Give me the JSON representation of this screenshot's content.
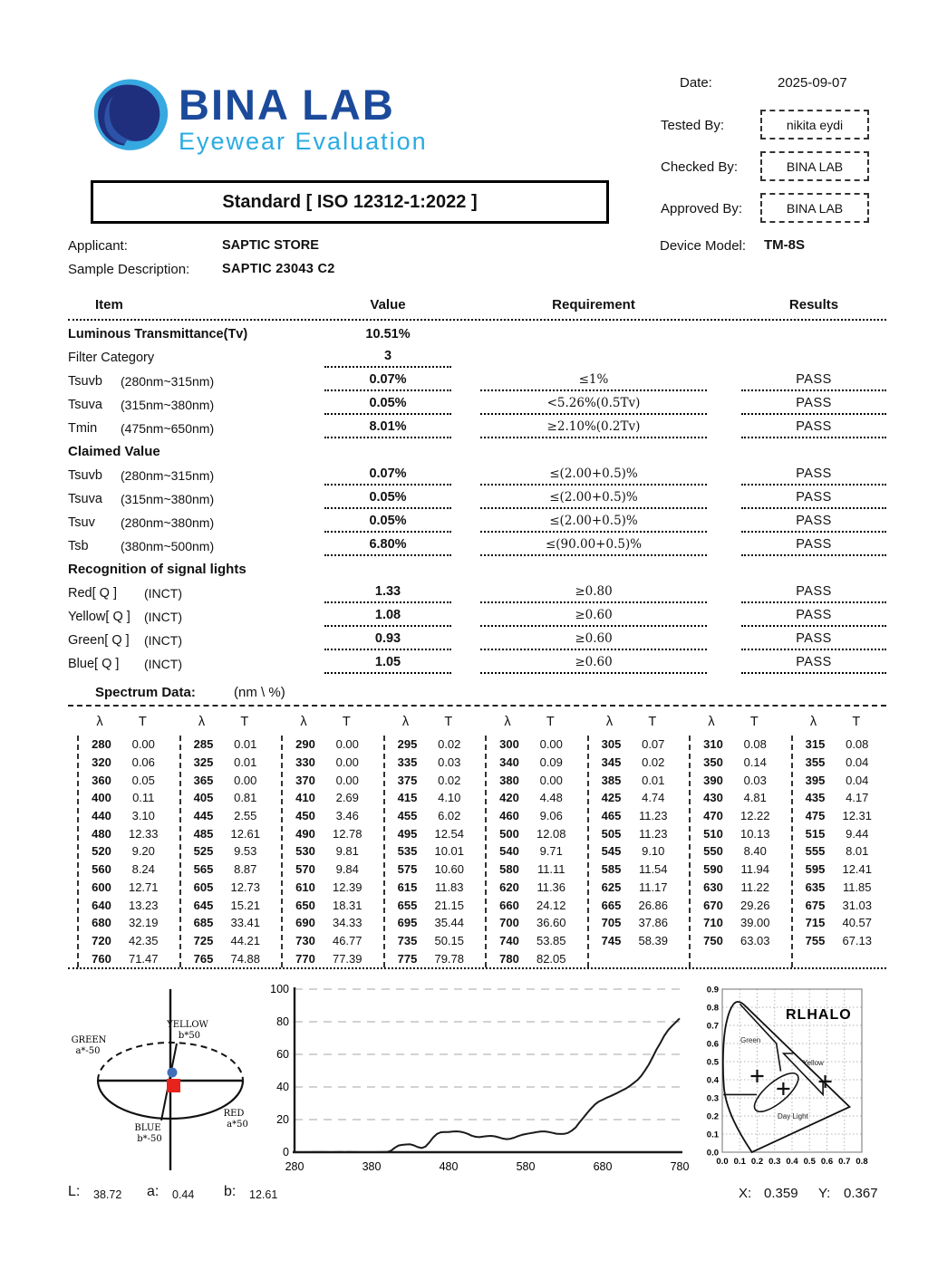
{
  "header": {
    "logo": {
      "title": "BINA LAB",
      "subtitle": "Eyewear Evaluation",
      "brand_blue": "#1b4a9b",
      "accent_cyan": "#29abe2"
    },
    "standard": "Standard [ ISO 12312-1:2022 ]",
    "meta": {
      "date_label": "Date:",
      "date": "2025-09-07",
      "tested_label": "Tested By:",
      "tested": "nikita eydi",
      "checked_label": "Checked By:",
      "checked": "BINA LAB",
      "approved_label": "Approved By:",
      "approved": "BINA LAB",
      "device_label": "Device Model:",
      "device": "TM-8S"
    },
    "applicant_label": "Applicant:",
    "applicant": "SAPTIC STORE",
    "sample_label": "Sample Description:",
    "sample": "SAPTIC 23043 C2"
  },
  "results_table": {
    "columns": [
      "Item",
      "Value",
      "Requirement",
      "Results"
    ],
    "rows": [
      {
        "t": "d",
        "item": "Luminous Transmittance(Tv)",
        "range": "",
        "value": "10.51%",
        "req": "",
        "res": "",
        "bold": true,
        "lines": []
      },
      {
        "t": "d",
        "item": "Filter Category",
        "range": "",
        "value": "3",
        "req": "",
        "res": "",
        "lines": [
          "v"
        ]
      },
      {
        "t": "d",
        "item": "Tsuvb",
        "range": "(280nm~315nm)",
        "value": "0.07%",
        "req": "≤1%",
        "res": "PASS",
        "lines": [
          "v",
          "q",
          "r"
        ]
      },
      {
        "t": "d",
        "item": "Tsuva",
        "range": "(315nm~380nm)",
        "value": "0.05%",
        "req": "<5.26%(0.5Tv)",
        "res": "PASS",
        "lines": [
          "v",
          "q",
          "r"
        ]
      },
      {
        "t": "d",
        "item": "Tmin",
        "range": "(475nm~650nm)",
        "value": "8.01%",
        "req": "≥2.10%(0.2Tv)",
        "res": "PASS",
        "lines": [
          "v",
          "q",
          "r"
        ]
      },
      {
        "t": "s",
        "item": "Claimed Value"
      },
      {
        "t": "d",
        "item": "Tsuvb",
        "range": "(280nm~315nm)",
        "value": "0.07%",
        "req": "≤(2.00+0.5)%",
        "res": "PASS",
        "lines": [
          "v",
          "q",
          "r"
        ]
      },
      {
        "t": "d",
        "item": "Tsuva",
        "range": "(315nm~380nm)",
        "value": "0.05%",
        "req": "≤(2.00+0.5)%",
        "res": "PASS",
        "lines": [
          "v",
          "q",
          "r"
        ]
      },
      {
        "t": "d",
        "item": "Tsuv",
        "range": "(280nm~380nm)",
        "value": "0.05%",
        "req": "≤(2.00+0.5)%",
        "res": "PASS",
        "lines": [
          "v",
          "q",
          "r"
        ]
      },
      {
        "t": "d",
        "item": "Tsb",
        "range": "(380nm~500nm)",
        "value": "6.80%",
        "req": "≤(90.00+0.5)%",
        "res": "PASS",
        "lines": [
          "v",
          "q",
          "r"
        ]
      },
      {
        "t": "s",
        "item": "Recognition of signal lights"
      },
      {
        "t": "d",
        "item": "Red[ Q ]",
        "range": "(INCT)",
        "value": "1.33",
        "req": "≥0.80",
        "res": "PASS",
        "lines": [
          "v",
          "q",
          "r"
        ]
      },
      {
        "t": "d",
        "item": "Yellow[ Q ]",
        "range": "(INCT)",
        "value": "1.08",
        "req": "≥0.60",
        "res": "PASS",
        "lines": [
          "v",
          "q",
          "r"
        ]
      },
      {
        "t": "d",
        "item": "Green[ Q ]",
        "range": "(INCT)",
        "value": "0.93",
        "req": "≥0.60",
        "res": "PASS",
        "lines": [
          "v",
          "q",
          "r"
        ]
      },
      {
        "t": "d",
        "item": "Blue[ Q ]",
        "range": "(INCT)",
        "value": "1.05",
        "req": "≥0.60",
        "res": "PASS",
        "lines": [
          "v",
          "q",
          "r"
        ]
      }
    ]
  },
  "spectrum_table": {
    "label": "Spectrum Data:",
    "unit": "(nm \\ %)",
    "col_headers": [
      "λ",
      "T"
    ]
  },
  "chart_data": [
    {
      "type": "scatter",
      "name": "lab-hue-diagram",
      "axis_labels": {
        "top": "YELLOW",
        "top_sub": "b*50",
        "left": "GREEN",
        "left_sub": "a*-50",
        "right": "RED",
        "right_sub": "a*50",
        "bottom": "BLUE",
        "bottom_sub": "b*-50"
      },
      "sample_point": {
        "L": 38.72,
        "a": 0.44,
        "b": 12.61
      },
      "marker_colors": {
        "dot": "#3f6fba",
        "square": "#e8231c"
      }
    },
    {
      "type": "line",
      "name": "transmittance-spectrum",
      "x_start": 280,
      "x_step": 5,
      "x_end": 780,
      "xlabel": "",
      "ylabel": "",
      "title": "",
      "xlim": [
        280,
        780
      ],
      "ylim": [
        0,
        100
      ],
      "xticks": [
        280,
        380,
        480,
        580,
        680,
        780
      ],
      "yticks": [
        0,
        20,
        40,
        60,
        80,
        100
      ],
      "grid": "dashed-horizontal",
      "values": [
        "0.00",
        "0.01",
        "0.00",
        "0.02",
        "0.00",
        "0.07",
        "0.08",
        "0.08",
        "0.06",
        "0.01",
        "0.00",
        "0.03",
        "0.09",
        "0.02",
        "0.14",
        "0.04",
        "0.05",
        "0.00",
        "0.00",
        "0.02",
        "0.00",
        "0.01",
        "0.03",
        "0.04",
        "0.11",
        "0.81",
        "2.69",
        "4.10",
        "4.48",
        "4.74",
        "4.81",
        "4.17",
        "3.10",
        "2.55",
        "3.46",
        "6.02",
        "9.06",
        "11.23",
        "12.22",
        "12.31",
        "12.33",
        "12.61",
        "12.78",
        "12.54",
        "12.08",
        "11.23",
        "10.13",
        "9.44",
        "9.20",
        "9.53",
        "9.81",
        "10.01",
        "9.71",
        "9.10",
        "8.40",
        "8.01",
        "8.24",
        "8.87",
        "9.84",
        "10.60",
        "11.11",
        "11.54",
        "11.94",
        "12.41",
        "12.71",
        "12.73",
        "12.39",
        "11.83",
        "11.36",
        "11.17",
        "11.22",
        "11.85",
        "13.23",
        "15.21",
        "18.31",
        "21.15",
        "24.12",
        "26.86",
        "29.26",
        "31.03",
        "32.19",
        "33.41",
        "34.33",
        "35.44",
        "36.60",
        "37.86",
        "39.00",
        "40.57",
        "42.35",
        "44.21",
        "46.77",
        "50.15",
        "53.85",
        "58.39",
        "63.03",
        "67.13",
        "71.47",
        "74.88",
        "77.39",
        "79.78",
        "82.05"
      ]
    },
    {
      "type": "scatter",
      "name": "chromaticity-diagram",
      "title": "RLHALO",
      "region_labels": [
        "Green",
        "Yellow",
        "Day Light"
      ],
      "xlim": [
        0,
        0.8
      ],
      "ylim": [
        0,
        0.9
      ],
      "xticks": [
        "0.0",
        "0.1",
        "0.2",
        "0.3",
        "0.4",
        "0.5",
        "0.6",
        "0.7",
        "0.8"
      ],
      "yticks": [
        "0.0",
        "0.1",
        "0.2",
        "0.3",
        "0.4",
        "0.5",
        "0.6",
        "0.7",
        "0.8",
        "0.9"
      ],
      "markers": [
        [
          0.2,
          0.42
        ],
        [
          0.35,
          0.35
        ],
        [
          0.59,
          0.39
        ]
      ],
      "point": {
        "X": 0.359,
        "Y": 0.367
      }
    }
  ],
  "footer": {
    "L_label": "L:",
    "L": "38.72",
    "a_label": "a:",
    "a": "0.44",
    "b_label": "b:",
    "b": "12.61",
    "X_label": "X:",
    "X": "0.359",
    "Y_label": "Y:",
    "Y": "0.367"
  }
}
